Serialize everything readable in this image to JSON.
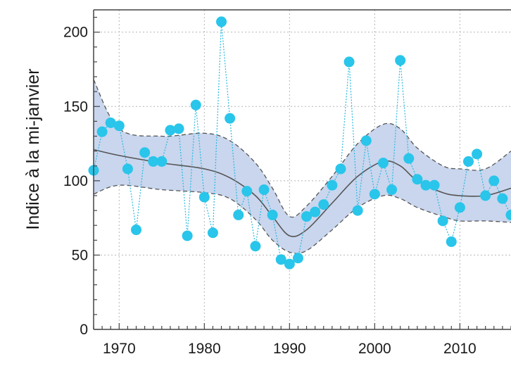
{
  "chart_data": {
    "type": "line",
    "title": "",
    "xlabel": "",
    "ylabel": "Indice à la mi-janvier",
    "xlim": [
      1967,
      2016
    ],
    "ylim": [
      0,
      215
    ],
    "x_ticks": [
      1970,
      1980,
      1990,
      2000,
      2010
    ],
    "y_ticks": [
      0,
      50,
      100,
      150,
      200
    ],
    "grid": true,
    "legend": "none",
    "colors": {
      "points": "#29c5ea",
      "point_line": "#29b8e0",
      "trend": "#555555",
      "band_fill": "#c9d6ee",
      "band_edge": "#555555",
      "grid": "#b5b5b5",
      "axis": "#444444"
    },
    "series": [
      {
        "role": "annual index",
        "style": "points with dotted connecting line",
        "x": [
          1967,
          1968,
          1969,
          1970,
          1971,
          1972,
          1973,
          1974,
          1975,
          1976,
          1977,
          1978,
          1979,
          1980,
          1981,
          1982,
          1983,
          1984,
          1985,
          1986,
          1987,
          1988,
          1989,
          1990,
          1991,
          1992,
          1993,
          1994,
          1995,
          1996,
          1997,
          1998,
          1999,
          2000,
          2001,
          2002,
          2003,
          2004,
          2005,
          2006,
          2007,
          2008,
          2009,
          2010,
          2011,
          2012,
          2013,
          2014,
          2015,
          2016
        ],
        "y": [
          107,
          133,
          139,
          137,
          108,
          67,
          119,
          113,
          113,
          134,
          135,
          63,
          151,
          89,
          65,
          207,
          142,
          77,
          93,
          56,
          94,
          77,
          47,
          44,
          48,
          76,
          79,
          84,
          97,
          108,
          180,
          80,
          127,
          91,
          112,
          94,
          181,
          115,
          101,
          97,
          97,
          73,
          59,
          82,
          113,
          118,
          90,
          100,
          88,
          77
        ]
      },
      {
        "role": "smoothed trend",
        "style": "solid line",
        "x": [
          1967,
          1970,
          1975,
          1980,
          1983,
          1986,
          1988,
          1990,
          1992,
          1995,
          1998,
          2001,
          2003,
          2005,
          2008,
          2010,
          2013,
          2016
        ],
        "y": [
          121,
          117,
          112,
          108,
          102,
          90,
          76,
          63,
          67,
          85,
          103,
          113,
          110,
          100,
          92,
          90,
          90,
          95
        ]
      },
      {
        "role": "confidence band upper",
        "style": "dashed line",
        "x": [
          1967,
          1970,
          1975,
          1980,
          1983,
          1986,
          1988,
          1990,
          1992,
          1995,
          1998,
          2001,
          2003,
          2005,
          2008,
          2010,
          2013,
          2016
        ],
        "y": [
          168,
          135,
          130,
          132,
          127,
          112,
          95,
          76,
          83,
          103,
          125,
          138,
          135,
          122,
          110,
          108,
          108,
          120
        ]
      },
      {
        "role": "confidence band lower",
        "style": "dashed line",
        "x": [
          1967,
          1970,
          1975,
          1980,
          1983,
          1986,
          1988,
          1990,
          1992,
          1995,
          1998,
          2001,
          2003,
          2005,
          2008,
          2010,
          2013,
          2016
        ],
        "y": [
          91,
          97,
          94,
          92,
          88,
          74,
          60,
          52,
          53,
          67,
          82,
          90,
          88,
          82,
          76,
          73,
          73,
          72
        ]
      }
    ]
  }
}
